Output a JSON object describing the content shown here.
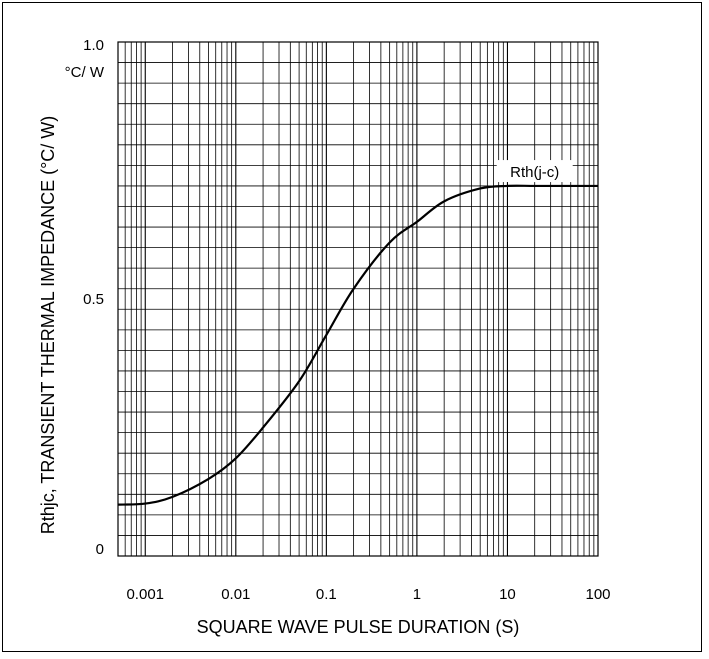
{
  "chart_data": {
    "type": "line",
    "title": "",
    "xlabel": "SQUARE WAVE PULSE DURATION (S)",
    "ylabel": "Rthjc, TRANSIENT THERMAL IMPEDANCE (°C/ W)",
    "y_unit_label": "°C/ W",
    "x_scale": "log",
    "xlim": [
      0.0005,
      100
    ],
    "ylim": [
      0,
      1.0
    ],
    "x_tick_values": [
      0.001,
      0.01,
      0.1,
      1,
      10,
      100
    ],
    "x_tick_labels": [
      "0.001",
      "0.01",
      "0.1",
      "1",
      "10",
      "100"
    ],
    "y_tick_values": [
      0,
      0.5,
      1.0
    ],
    "y_tick_labels": [
      "0",
      "0.5",
      "1.0"
    ],
    "grid": true,
    "legend": "none",
    "series": [
      {
        "name": "Rth(j-c)",
        "color": "#000000",
        "x": [
          0.0005,
          0.001,
          0.002,
          0.005,
          0.01,
          0.02,
          0.05,
          0.1,
          0.2,
          0.5,
          1,
          2,
          5,
          10,
          20,
          50,
          100
        ],
        "y": [
          0.1,
          0.102,
          0.115,
          0.15,
          0.19,
          0.25,
          0.34,
          0.43,
          0.52,
          0.61,
          0.65,
          0.69,
          0.715,
          0.72,
          0.72,
          0.72,
          0.72
        ]
      }
    ],
    "annotations": [
      {
        "text": "Rth(j-c)",
        "x": 20,
        "y": 0.745
      }
    ]
  }
}
